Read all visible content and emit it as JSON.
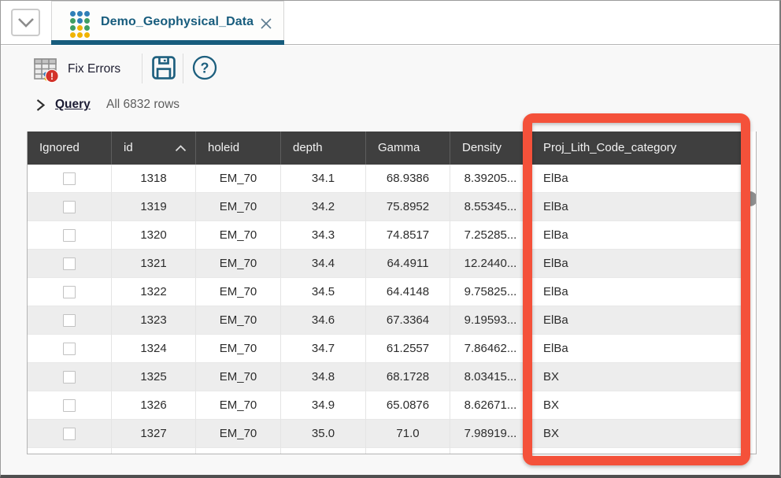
{
  "tab_bar": {
    "tab": {
      "label": "Demo_Geophysical_Data"
    }
  },
  "toolbar": {
    "fix_errors_label": "Fix Errors"
  },
  "query_bar": {
    "label": "Query",
    "row_count": "All 6832 rows"
  },
  "table": {
    "columns": [
      "Ignored",
      "id",
      "holeid",
      "depth",
      "Gamma",
      "Density",
      "Proj_Lith_Code_category"
    ],
    "sorted_column": "id",
    "sort_direction": "ascending",
    "rows": [
      {
        "ignored": false,
        "id": "1318",
        "holeid": "EM_70",
        "depth": "34.1",
        "gamma": "68.9386",
        "density": "8.39205...",
        "category": "ElBa"
      },
      {
        "ignored": false,
        "id": "1319",
        "holeid": "EM_70",
        "depth": "34.2",
        "gamma": "75.8952",
        "density": "8.55345...",
        "category": "ElBa"
      },
      {
        "ignored": false,
        "id": "1320",
        "holeid": "EM_70",
        "depth": "34.3",
        "gamma": "74.8517",
        "density": "7.25285...",
        "category": "ElBa"
      },
      {
        "ignored": false,
        "id": "1321",
        "holeid": "EM_70",
        "depth": "34.4",
        "gamma": "64.4911",
        "density": "12.2440...",
        "category": "ElBa"
      },
      {
        "ignored": false,
        "id": "1322",
        "holeid": "EM_70",
        "depth": "34.5",
        "gamma": "64.4148",
        "density": "9.75825...",
        "category": "ElBa"
      },
      {
        "ignored": false,
        "id": "1323",
        "holeid": "EM_70",
        "depth": "34.6",
        "gamma": "67.3364",
        "density": "9.19593...",
        "category": "ElBa"
      },
      {
        "ignored": false,
        "id": "1324",
        "holeid": "EM_70",
        "depth": "34.7",
        "gamma": "61.2557",
        "density": "7.86462...",
        "category": "ElBa"
      },
      {
        "ignored": false,
        "id": "1325",
        "holeid": "EM_70",
        "depth": "34.8",
        "gamma": "68.1728",
        "density": "8.03415...",
        "category": "BX"
      },
      {
        "ignored": false,
        "id": "1326",
        "holeid": "EM_70",
        "depth": "34.9",
        "gamma": "65.0876",
        "density": "8.62671...",
        "category": "BX"
      },
      {
        "ignored": false,
        "id": "1327",
        "holeid": "EM_70",
        "depth": "35.0",
        "gamma": "71.0",
        "density": "7.98919...",
        "category": "BX"
      }
    ]
  },
  "annotation": {
    "shape": "rectangle",
    "color": "#f4513a",
    "highlights": "Proj_Lith_Code_category column"
  },
  "icons": {
    "tab_icon": "dot-grid-table",
    "dropdown_icon": "chevron-down",
    "close_icon": "x-cross",
    "fix_errors_icon": "table-grid-with-error-badge",
    "save_icon": "floppy-disk",
    "help_icon": "question-mark-circle",
    "query_chevron": "chevron-right",
    "sort_icon": "chevron-up",
    "scrollbar_thumb": "round-thumb"
  },
  "colors": {
    "accent_teal": "#175c7d",
    "table_header_bg": "#3f3f3f",
    "row_alt_bg": "#ededed",
    "highlight_orange": "#f4513a",
    "error_red": "#d3322a"
  }
}
